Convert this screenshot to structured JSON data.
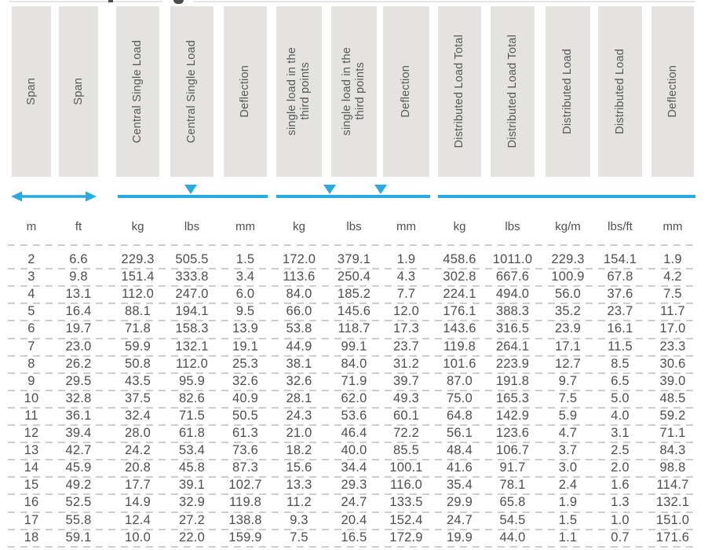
{
  "colors": {
    "accent": "#29abe2",
    "header_box_bg": "#e4e3e0",
    "header_text": "#56575b",
    "data_text": "#4d4e50",
    "row_separator": "#cdcdcd"
  },
  "legend": {
    "span_marker": "double-arrow-icon",
    "central_load_marker": "down-triangle-icon",
    "third_point_markers": [
      "down-triangle-icon",
      "down-triangle-icon"
    ]
  },
  "table": {
    "columns": [
      {
        "label": "Span",
        "unit": "m"
      },
      {
        "label": "Span",
        "unit": "ft"
      },
      {
        "label": "Central Single Load",
        "unit": "kg"
      },
      {
        "label": "Central Single Load",
        "unit": "lbs"
      },
      {
        "label": "Deflection",
        "unit": "mm"
      },
      {
        "label": "single load in the\nthird points",
        "unit": "kg"
      },
      {
        "label": "single load in the\nthird points",
        "unit": "lbs"
      },
      {
        "label": "Deflection",
        "unit": "mm"
      },
      {
        "label": "Distributed Load Total",
        "unit": "kg"
      },
      {
        "label": "Distributed Load Total",
        "unit": "lbs"
      },
      {
        "label": "Distributed Load",
        "unit": "kg/m"
      },
      {
        "label": "Distributed Load",
        "unit": "lbs/ft"
      },
      {
        "label": "Deflection",
        "unit": "mm"
      }
    ],
    "rows": [
      [
        "2",
        "6.6",
        "229.3",
        "505.5",
        "1.5",
        "172.0",
        "379.1",
        "1.9",
        "458.6",
        "1011.0",
        "229.3",
        "154.1",
        "1.9"
      ],
      [
        "3",
        "9.8",
        "151.4",
        "333.8",
        "3.4",
        "113.6",
        "250.4",
        "4.3",
        "302.8",
        "667.6",
        "100.9",
        "67.8",
        "4.2"
      ],
      [
        "4",
        "13.1",
        "112.0",
        "247.0",
        "6.0",
        "84.0",
        "185.2",
        "7.7",
        "224.1",
        "494.0",
        "56.0",
        "37.6",
        "7.5"
      ],
      [
        "5",
        "16.4",
        "88.1",
        "194.1",
        "9.5",
        "66.0",
        "145.6",
        "12.0",
        "176.1",
        "388.3",
        "35.2",
        "23.7",
        "11.7"
      ],
      [
        "6",
        "19.7",
        "71.8",
        "158.3",
        "13.9",
        "53.8",
        "118.7",
        "17.3",
        "143.6",
        "316.5",
        "23.9",
        "16.1",
        "17.0"
      ],
      [
        "7",
        "23.0",
        "59.9",
        "132.1",
        "19.1",
        "44.9",
        "99.1",
        "23.7",
        "119.8",
        "264.1",
        "17.1",
        "11.5",
        "23.3"
      ],
      [
        "8",
        "26.2",
        "50.8",
        "112.0",
        "25.3",
        "38.1",
        "84.0",
        "31.2",
        "101.6",
        "223.9",
        "12.7",
        "8.5",
        "30.6"
      ],
      [
        "9",
        "29.5",
        "43.5",
        "95.9",
        "32.6",
        "32.6",
        "71.9",
        "39.7",
        "87.0",
        "191.8",
        "9.7",
        "6.5",
        "39.0"
      ],
      [
        "10",
        "32.8",
        "37.5",
        "82.6",
        "40.9",
        "28.1",
        "62.0",
        "49.3",
        "75.0",
        "165.3",
        "7.5",
        "5.0",
        "48.5"
      ],
      [
        "11",
        "36.1",
        "32.4",
        "71.5",
        "50.5",
        "24.3",
        "53.6",
        "60.1",
        "64.8",
        "142.9",
        "5.9",
        "4.0",
        "59.2"
      ],
      [
        "12",
        "39.4",
        "28.0",
        "61.8",
        "61.3",
        "21.0",
        "46.4",
        "72.2",
        "56.1",
        "123.6",
        "4.7",
        "3.1",
        "71.1"
      ],
      [
        "13",
        "42.7",
        "24.2",
        "53.4",
        "73.6",
        "18.2",
        "40.0",
        "85.5",
        "48.4",
        "106.7",
        "3.7",
        "2.5",
        "84.3"
      ],
      [
        "14",
        "45.9",
        "20.8",
        "45.8",
        "87.3",
        "15.6",
        "34.4",
        "100.1",
        "41.6",
        "91.7",
        "3.0",
        "2.0",
        "98.8"
      ],
      [
        "15",
        "49.2",
        "17.7",
        "39.1",
        "102.7",
        "13.3",
        "29.3",
        "116.0",
        "35.4",
        "78.1",
        "2.4",
        "1.6",
        "114.7"
      ],
      [
        "16",
        "52.5",
        "14.9",
        "32.9",
        "119.8",
        "11.2",
        "24.7",
        "133.5",
        "29.9",
        "65.8",
        "1.9",
        "1.3",
        "132.1"
      ],
      [
        "17",
        "55.8",
        "12.4",
        "27.2",
        "138.8",
        "9.3",
        "20.4",
        "152.4",
        "24.7",
        "54.5",
        "1.5",
        "1.0",
        "151.0"
      ],
      [
        "18",
        "59.1",
        "10.0",
        "22.0",
        "159.9",
        "7.5",
        "16.5",
        "172.9",
        "19.9",
        "44.0",
        "1.1",
        "0.7",
        "171.6"
      ]
    ]
  }
}
